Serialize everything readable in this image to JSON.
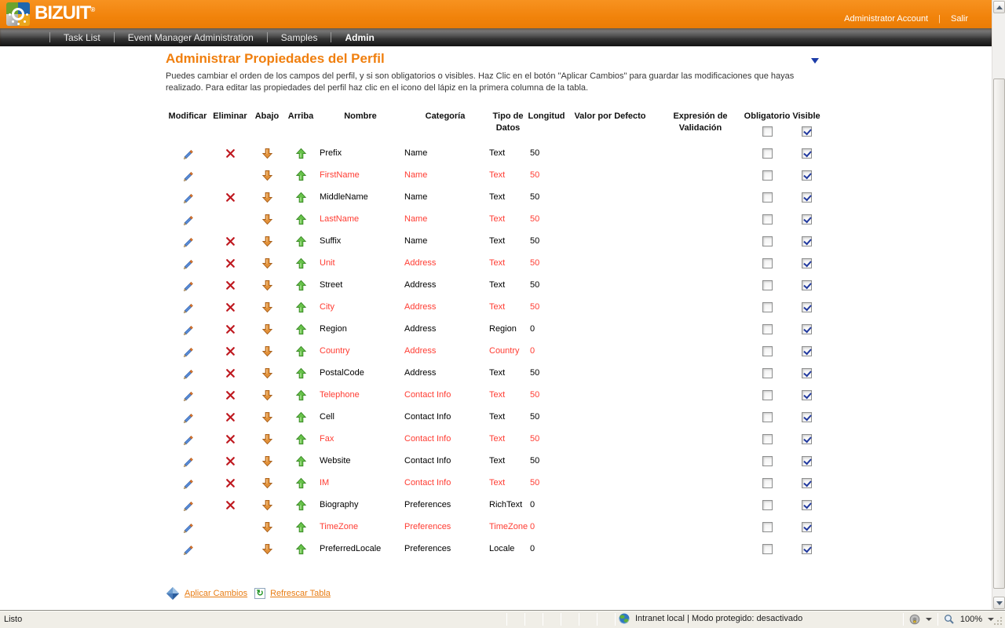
{
  "header": {
    "brand": "BIZUIT",
    "brand_mark": "®",
    "account_label": "Administrator Account",
    "separator": "|",
    "logout_label": "Salir"
  },
  "nav": {
    "tabs": [
      {
        "label": "Task List",
        "active": false
      },
      {
        "label": "Event Manager Administration",
        "active": false
      },
      {
        "label": "Samples",
        "active": false
      },
      {
        "label": "Admin",
        "active": true
      }
    ]
  },
  "page": {
    "title": "Administrar Propiedades del Perfil",
    "description": "Puedes cambiar el orden de los campos del perfil, y si son obligatorios o visibles. Haz Clic en el botón \"Aplicar Cambios\" para guardar las modificaciones que hayas realizado. Para editar las propiedades del perfil haz clic en el icono del lápiz en la primera columna de la tabla."
  },
  "table": {
    "headers": {
      "modificar": "Modificar",
      "eliminar": "Eliminar",
      "abajo": "Abajo",
      "arriba": "Arriba",
      "nombre": "Nombre",
      "categoria": "Categoría",
      "tipo": "Tipo de Datos",
      "longitud": "Longitud",
      "valor": "Valor por Defecto",
      "expresion": "Expresión de Validación",
      "obligatorio": "Obligatorio",
      "visible": "Visible"
    },
    "header_checkboxes": {
      "obligatorio_checked": false,
      "visible_checked": true
    },
    "rows": [
      {
        "name": "Prefix",
        "category": "Name",
        "data_type": "Text",
        "length": "50",
        "default_value": "",
        "validation_expression": "",
        "deletable": true,
        "highlighted": false,
        "obligatorio_checked": false,
        "visible_checked": true
      },
      {
        "name": "FirstName",
        "category": "Name",
        "data_type": "Text",
        "length": "50",
        "default_value": "",
        "validation_expression": "",
        "deletable": false,
        "highlighted": true,
        "obligatorio_checked": false,
        "visible_checked": true
      },
      {
        "name": "MiddleName",
        "category": "Name",
        "data_type": "Text",
        "length": "50",
        "default_value": "",
        "validation_expression": "",
        "deletable": true,
        "highlighted": false,
        "obligatorio_checked": false,
        "visible_checked": true
      },
      {
        "name": "LastName",
        "category": "Name",
        "data_type": "Text",
        "length": "50",
        "default_value": "",
        "validation_expression": "",
        "deletable": false,
        "highlighted": true,
        "obligatorio_checked": false,
        "visible_checked": true
      },
      {
        "name": "Suffix",
        "category": "Name",
        "data_type": "Text",
        "length": "50",
        "default_value": "",
        "validation_expression": "",
        "deletable": true,
        "highlighted": false,
        "obligatorio_checked": false,
        "visible_checked": true
      },
      {
        "name": "Unit",
        "category": "Address",
        "data_type": "Text",
        "length": "50",
        "default_value": "",
        "validation_expression": "",
        "deletable": true,
        "highlighted": true,
        "obligatorio_checked": false,
        "visible_checked": true
      },
      {
        "name": "Street",
        "category": "Address",
        "data_type": "Text",
        "length": "50",
        "default_value": "",
        "validation_expression": "",
        "deletable": true,
        "highlighted": false,
        "obligatorio_checked": false,
        "visible_checked": true
      },
      {
        "name": "City",
        "category": "Address",
        "data_type": "Text",
        "length": "50",
        "default_value": "",
        "validation_expression": "",
        "deletable": true,
        "highlighted": true,
        "obligatorio_checked": false,
        "visible_checked": true
      },
      {
        "name": "Region",
        "category": "Address",
        "data_type": "Region",
        "length": "0",
        "default_value": "",
        "validation_expression": "",
        "deletable": true,
        "highlighted": false,
        "obligatorio_checked": false,
        "visible_checked": true
      },
      {
        "name": "Country",
        "category": "Address",
        "data_type": "Country",
        "length": "0",
        "default_value": "",
        "validation_expression": "",
        "deletable": true,
        "highlighted": true,
        "obligatorio_checked": false,
        "visible_checked": true
      },
      {
        "name": "PostalCode",
        "category": "Address",
        "data_type": "Text",
        "length": "50",
        "default_value": "",
        "validation_expression": "",
        "deletable": true,
        "highlighted": false,
        "obligatorio_checked": false,
        "visible_checked": true
      },
      {
        "name": "Telephone",
        "category": "Contact Info",
        "data_type": "Text",
        "length": "50",
        "default_value": "",
        "validation_expression": "",
        "deletable": true,
        "highlighted": true,
        "obligatorio_checked": false,
        "visible_checked": true
      },
      {
        "name": "Cell",
        "category": "Contact Info",
        "data_type": "Text",
        "length": "50",
        "default_value": "",
        "validation_expression": "",
        "deletable": true,
        "highlighted": false,
        "obligatorio_checked": false,
        "visible_checked": true
      },
      {
        "name": "Fax",
        "category": "Contact Info",
        "data_type": "Text",
        "length": "50",
        "default_value": "",
        "validation_expression": "",
        "deletable": true,
        "highlighted": true,
        "obligatorio_checked": false,
        "visible_checked": true
      },
      {
        "name": "Website",
        "category": "Contact Info",
        "data_type": "Text",
        "length": "50",
        "default_value": "",
        "validation_expression": "",
        "deletable": true,
        "highlighted": false,
        "obligatorio_checked": false,
        "visible_checked": true
      },
      {
        "name": "IM",
        "category": "Contact Info",
        "data_type": "Text",
        "length": "50",
        "default_value": "",
        "validation_expression": "",
        "deletable": true,
        "highlighted": true,
        "obligatorio_checked": false,
        "visible_checked": true
      },
      {
        "name": "Biography",
        "category": "Preferences",
        "data_type": "RichText",
        "length": "0",
        "default_value": "",
        "validation_expression": "",
        "deletable": true,
        "highlighted": false,
        "obligatorio_checked": false,
        "visible_checked": true
      },
      {
        "name": "TimeZone",
        "category": "Preferences",
        "data_type": "TimeZone",
        "length": "0",
        "default_value": "",
        "validation_expression": "",
        "deletable": false,
        "highlighted": true,
        "obligatorio_checked": false,
        "visible_checked": true
      },
      {
        "name": "PreferredLocale",
        "category": "Preferences",
        "data_type": "Locale",
        "length": "0",
        "default_value": "",
        "validation_expression": "",
        "deletable": false,
        "highlighted": false,
        "obligatorio_checked": false,
        "visible_checked": true
      }
    ]
  },
  "actions": {
    "apply_label": "Aplicar Cambios",
    "refresh_label": "Refrescar Tabla"
  },
  "status_bar": {
    "left_text": "Listo",
    "zone_text": "Intranet local | Modo protegido: desactivado",
    "zoom_level": "100%"
  },
  "icons": {
    "edit": "pencil-icon",
    "delete": "x-icon",
    "move_down": "orange-down-arrow-icon",
    "move_up": "green-up-arrow-icon",
    "apply": "blue-diamond-icon",
    "refresh": "refresh-icon",
    "zone": "globe-icon"
  },
  "colors": {
    "accent_orange": "#f1830b",
    "title_orange": "#f07f0e",
    "link_orange": "#e87c13",
    "highlight_red": "#ff3c32",
    "check_navy": "#21399e",
    "nav_dark": "#2e2e2e"
  }
}
